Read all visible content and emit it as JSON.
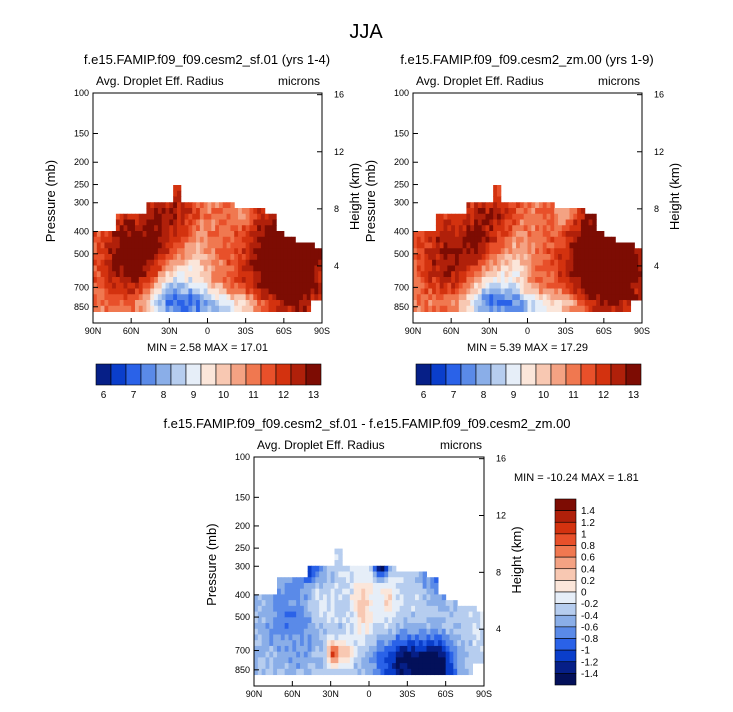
{
  "page": {
    "title": "JJA"
  },
  "colorbar": {
    "top_labels": [
      "6",
      "7",
      "8",
      "9",
      "10",
      "11",
      "12",
      "13"
    ],
    "top_colors": [
      "#061f87",
      "#0a3ecb",
      "#2a62e8",
      "#5a8ae8",
      "#8aaee8",
      "#b6cdef",
      "#e6eef8",
      "#fbe6da",
      "#f8c8b2",
      "#f4a283",
      "#f07850",
      "#e8502a",
      "#d3320f",
      "#b0200a",
      "#7d0c03"
    ],
    "diff_labels": [
      "1.4",
      "1.2",
      "1",
      "0.8",
      "0.6",
      "0.4",
      "0.2",
      "0",
      "-0.2",
      "-0.4",
      "-0.6",
      "-0.8",
      "-1",
      "-1.2",
      "-1.4"
    ],
    "diff_colors": [
      "#7d0c03",
      "#b0200a",
      "#d3320f",
      "#e8502a",
      "#f07850",
      "#f4a283",
      "#f8c8b2",
      "#fbe6da",
      "#e6eef8",
      "#b6cdef",
      "#8aaee8",
      "#5a8ae8",
      "#2a62e8",
      "#0a3ecb",
      "#061f87",
      "#03105a"
    ]
  },
  "chart_data": [
    {
      "type": "heatmap",
      "id": "p1",
      "title": "f.e15.FAMIP.f09_f09.cesm2_sf.01 (yrs 1-4)",
      "left_label": "Avg. Droplet Eff. Radius",
      "right_label": "microns",
      "ylabel": "Pressure (mb)",
      "ylabel_right": "Height (km)",
      "xticks": [
        "90N",
        "60N",
        "30N",
        "0",
        "30S",
        "60S",
        "90S"
      ],
      "yticks": [
        "100",
        "150",
        "200",
        "250",
        "300",
        "400",
        "500",
        "700",
        "850"
      ],
      "yticks_right": [
        "16",
        "12",
        "8",
        "4"
      ],
      "ylim": [
        100,
        1000
      ],
      "xlim": [
        90,
        -90
      ],
      "stats": "MIN =   2.58   MAX =  17.01",
      "min": 2.58,
      "max": 17.01,
      "mode": "abs"
    },
    {
      "type": "heatmap",
      "id": "p2",
      "title": "f.e15.FAMIP.f09_f09.cesm2_zm.00 (yrs 1-9)",
      "left_label": "Avg. Droplet Eff. Radius",
      "right_label": "microns",
      "ylabel": "Pressure (mb)",
      "ylabel_right": "Height (km)",
      "xticks": [
        "90N",
        "60N",
        "30N",
        "0",
        "30S",
        "60S",
        "90S"
      ],
      "yticks": [
        "100",
        "150",
        "200",
        "250",
        "300",
        "400",
        "500",
        "700",
        "850"
      ],
      "yticks_right": [
        "16",
        "12",
        "8",
        "4"
      ],
      "ylim": [
        100,
        1000
      ],
      "xlim": [
        90,
        -90
      ],
      "stats": "MIN =   5.39   MAX =  17.29",
      "min": 5.39,
      "max": 17.29,
      "mode": "abs"
    },
    {
      "type": "heatmap",
      "id": "p3",
      "title": "f.e15.FAMIP.f09_f09.cesm2_sf.01 - f.e15.FAMIP.f09_f09.cesm2_zm.00",
      "left_label": "Avg. Droplet Eff. Radius",
      "right_label": "microns",
      "ylabel": "Pressure (mb)",
      "ylabel_right": "Height (km)",
      "xticks": [
        "90N",
        "60N",
        "30N",
        "0",
        "30S",
        "60S",
        "90S"
      ],
      "yticks": [
        "100",
        "150",
        "200",
        "250",
        "300",
        "400",
        "500",
        "700",
        "850"
      ],
      "yticks_right": [
        "16",
        "12",
        "8",
        "4"
      ],
      "ylim": [
        100,
        1000
      ],
      "xlim": [
        90,
        -90
      ],
      "stats": "MIN = -10.24   MAX =   1.81",
      "min": -10.24,
      "max": 1.81,
      "mode": "diff"
    }
  ]
}
